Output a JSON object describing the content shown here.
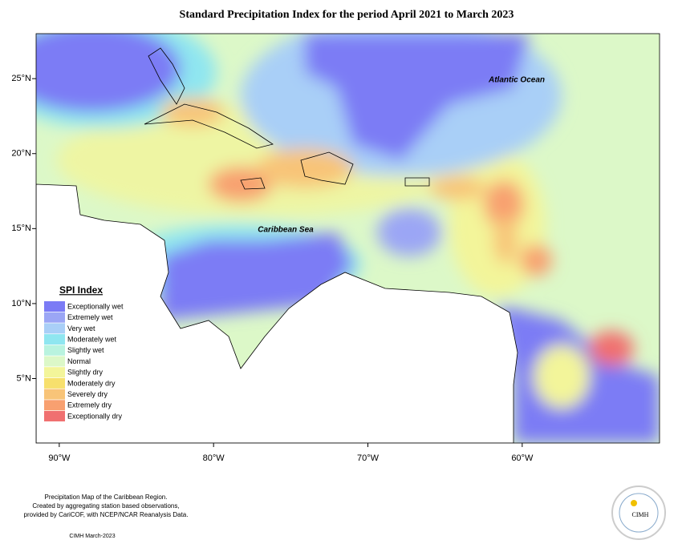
{
  "map": {
    "title": "Standard Precipitation Index for the period April 2021 to March 2023",
    "lonlim": [
      -91.5,
      -51.1
    ],
    "latlim": [
      0.7,
      28
    ],
    "lon_ticks": [
      {
        "value": -90,
        "label": "90°W"
      },
      {
        "value": -80,
        "label": "80°W"
      },
      {
        "value": -70,
        "label": "70°W"
      },
      {
        "value": -60,
        "label": "60°W"
      }
    ],
    "lat_ticks": [
      {
        "value": 25,
        "label": "25°N"
      },
      {
        "value": 20,
        "label": "20°N"
      },
      {
        "value": 15,
        "label": "15°N"
      },
      {
        "value": 10,
        "label": "10°N"
      },
      {
        "value": 5,
        "label": "5°N"
      }
    ],
    "labels": [
      "Atlantic Ocean",
      "Caribbean Sea"
    ],
    "legend": {
      "title": "SPI Index",
      "entries": [
        {
          "name": "Exceptionally wet",
          "color": "#7b7bf5"
        },
        {
          "name": "Extremely wet",
          "color": "#9ba6f5"
        },
        {
          "name": "Very wet",
          "color": "#a9cff7"
        },
        {
          "name": "Moderately wet",
          "color": "#8fe6f0"
        },
        {
          "name": "Slightly wet",
          "color": "#b9f3df"
        },
        {
          "name": "Normal",
          "color": "#dcf8c8"
        },
        {
          "name": "Slightly dry",
          "color": "#f3f59a"
        },
        {
          "name": "Moderately dry",
          "color": "#f7e06d"
        },
        {
          "name": "Severely dry",
          "color": "#f8c478"
        },
        {
          "name": "Extremely dry",
          "color": "#f8a070"
        },
        {
          "name": "Exceptionally dry",
          "color": "#f07070"
        }
      ]
    },
    "footnote": [
      "Precipitation Map of the Caribbean Region.",
      "Created by aggregating station based observations,",
      "provided by CariCOF, with NCEP/NCAR Reanalysis Data."
    ],
    "credit": "CIMH March-2023",
    "logo": "CIMH"
  }
}
